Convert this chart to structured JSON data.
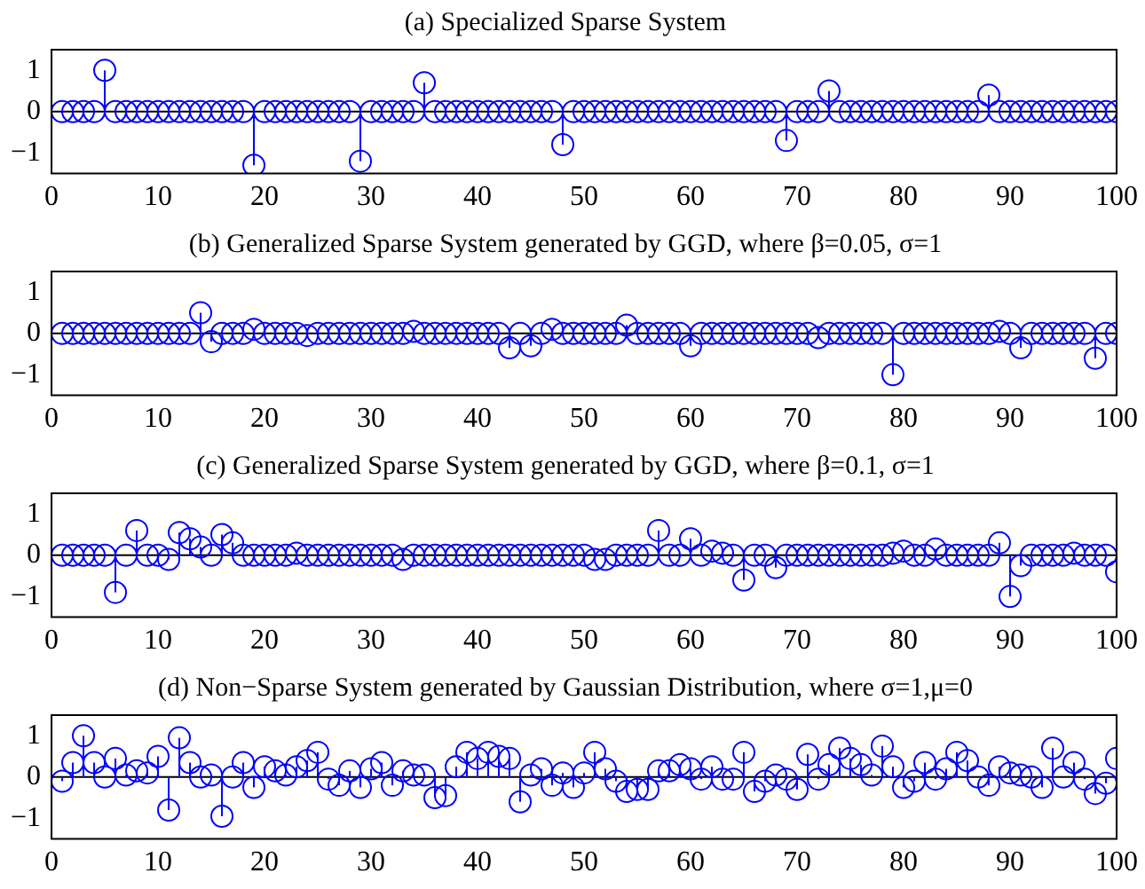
{
  "chart_data": [
    {
      "type": "lollipop",
      "title": "(a) Specialized Sparse System",
      "color": "#0000ff",
      "marker": "circle",
      "xlim": [
        0,
        100
      ],
      "xticks": [
        0,
        10,
        20,
        30,
        40,
        50,
        60,
        70,
        80,
        90,
        100
      ],
      "ylim": [
        -1.5,
        1.5
      ],
      "yticks": [
        -1,
        0,
        1
      ],
      "x": [
        1,
        2,
        3,
        4,
        5,
        6,
        7,
        8,
        9,
        10,
        11,
        12,
        13,
        14,
        15,
        16,
        17,
        18,
        19,
        20,
        21,
        22,
        23,
        24,
        25,
        26,
        27,
        28,
        29,
        30,
        31,
        32,
        33,
        34,
        35,
        36,
        37,
        38,
        39,
        40,
        41,
        42,
        43,
        44,
        45,
        46,
        47,
        48,
        49,
        50,
        51,
        52,
        53,
        54,
        55,
        56,
        57,
        58,
        59,
        60,
        61,
        62,
        63,
        64,
        65,
        66,
        67,
        68,
        69,
        70,
        71,
        72,
        73,
        74,
        75,
        76,
        77,
        78,
        79,
        80,
        81,
        82,
        83,
        84,
        85,
        86,
        87,
        88,
        89,
        90,
        91,
        92,
        93,
        94,
        95,
        96,
        97,
        98,
        99,
        100
      ],
      "values": [
        0,
        0,
        0,
        0,
        1,
        0,
        0,
        0,
        0,
        0,
        0,
        0,
        0,
        0,
        0,
        0,
        0,
        0,
        -1.3,
        0,
        0,
        0,
        0,
        0,
        0,
        0,
        0,
        0,
        -1.2,
        0,
        0,
        0,
        0,
        0,
        0.7,
        0,
        0,
        0,
        0,
        0,
        0,
        0,
        0,
        0,
        0,
        0,
        0,
        -0.8,
        0,
        0,
        0,
        0,
        0,
        0,
        0,
        0,
        0,
        0,
        0,
        0,
        0,
        0,
        0,
        0,
        0,
        0,
        0,
        0,
        -0.7,
        0,
        0,
        0,
        0.5,
        0,
        0,
        0,
        0,
        0,
        0,
        0,
        0,
        0,
        0,
        0,
        0,
        0,
        0,
        0.4,
        0,
        0,
        0,
        0,
        0,
        0,
        0,
        0,
        0,
        0,
        0,
        0
      ]
    },
    {
      "type": "lollipop",
      "title": "(b) Generalized Sparse System generated by GGD, where β=0.05, σ=1",
      "color": "#0000ff",
      "marker": "circle",
      "xlim": [
        0,
        100
      ],
      "xticks": [
        0,
        10,
        20,
        30,
        40,
        50,
        60,
        70,
        80,
        90,
        100
      ],
      "ylim": [
        -1.5,
        1.5
      ],
      "yticks": [
        -1,
        0,
        1
      ],
      "x": [
        1,
        2,
        3,
        4,
        5,
        6,
        7,
        8,
        9,
        10,
        11,
        12,
        13,
        14,
        15,
        16,
        17,
        18,
        19,
        20,
        21,
        22,
        23,
        24,
        25,
        26,
        27,
        28,
        29,
        30,
        31,
        32,
        33,
        34,
        35,
        36,
        37,
        38,
        39,
        40,
        41,
        42,
        43,
        44,
        45,
        46,
        47,
        48,
        49,
        50,
        51,
        52,
        53,
        54,
        55,
        56,
        57,
        58,
        59,
        60,
        61,
        62,
        63,
        64,
        65,
        66,
        67,
        68,
        69,
        70,
        71,
        72,
        73,
        74,
        75,
        76,
        77,
        78,
        79,
        80,
        81,
        82,
        83,
        84,
        85,
        86,
        87,
        88,
        89,
        90,
        91,
        92,
        93,
        94,
        95,
        96,
        97,
        98,
        99,
        100
      ],
      "values": [
        0,
        0,
        0,
        0,
        0,
        0,
        0,
        0,
        0,
        0,
        0,
        0,
        0,
        0.5,
        -0.2,
        0,
        0,
        0,
        0.1,
        0,
        0,
        0,
        0,
        -0.05,
        0,
        0,
        0,
        0,
        0,
        0,
        0,
        0,
        0,
        0.05,
        0,
        0,
        0,
        0,
        0,
        0,
        0,
        0,
        -0.35,
        0,
        -0.3,
        0,
        0.1,
        0,
        0,
        0,
        0,
        0,
        0,
        0.2,
        0,
        0,
        0,
        0,
        0,
        -0.3,
        0,
        0,
        0,
        0,
        0,
        0,
        0,
        0,
        0,
        0,
        0,
        -0.1,
        0,
        0,
        0,
        0,
        0,
        0,
        -1,
        0,
        0,
        0,
        0,
        0,
        0,
        0,
        0,
        0,
        0.05,
        0,
        -0.35,
        0,
        0,
        0,
        0,
        0,
        0,
        -0.6,
        0,
        0
      ]
    },
    {
      "type": "lollipop",
      "title": "(c) Generalized Sparse System generated by GGD, where β=0.1, σ=1",
      "color": "#0000ff",
      "marker": "circle",
      "xlim": [
        0,
        100
      ],
      "xticks": [
        0,
        10,
        20,
        30,
        40,
        50,
        60,
        70,
        80,
        90,
        100
      ],
      "ylim": [
        -1.5,
        1.5
      ],
      "yticks": [
        -1,
        0,
        1
      ],
      "x": [
        1,
        2,
        3,
        4,
        5,
        6,
        7,
        8,
        9,
        10,
        11,
        12,
        13,
        14,
        15,
        16,
        17,
        18,
        19,
        20,
        21,
        22,
        23,
        24,
        25,
        26,
        27,
        28,
        29,
        30,
        31,
        32,
        33,
        34,
        35,
        36,
        37,
        38,
        39,
        40,
        41,
        42,
        43,
        44,
        45,
        46,
        47,
        48,
        49,
        50,
        51,
        52,
        53,
        54,
        55,
        56,
        57,
        58,
        59,
        60,
        61,
        62,
        63,
        64,
        65,
        66,
        67,
        68,
        69,
        70,
        71,
        72,
        73,
        74,
        75,
        76,
        77,
        78,
        79,
        80,
        81,
        82,
        83,
        84,
        85,
        86,
        87,
        88,
        89,
        90,
        91,
        92,
        93,
        94,
        95,
        96,
        97,
        98,
        99,
        100
      ],
      "values": [
        0,
        0,
        0,
        0,
        0,
        -0.9,
        0,
        0.6,
        0,
        0,
        -0.1,
        0.55,
        0.4,
        0.2,
        0,
        0.5,
        0.3,
        0,
        0,
        0,
        0,
        0,
        0.05,
        0,
        0,
        0,
        0,
        0,
        0,
        0,
        0,
        0,
        -0.1,
        0,
        0,
        0,
        0,
        0,
        0,
        0,
        0,
        0,
        0,
        0,
        0,
        0,
        0,
        0,
        0,
        0,
        -0.1,
        -0.1,
        0,
        0,
        0,
        0,
        0.6,
        0,
        0,
        0.4,
        0,
        0.1,
        0.05,
        0,
        -0.6,
        0,
        0,
        -0.3,
        0,
        0,
        0,
        0,
        0,
        0,
        0,
        0,
        0,
        0,
        0.05,
        0.1,
        0,
        0,
        0.15,
        0,
        0,
        0,
        0,
        0,
        0.3,
        -1,
        -0.25,
        0,
        0,
        0,
        0,
        0.05,
        0,
        0,
        0,
        -0.4
      ]
    },
    {
      "type": "lollipop",
      "title": "(d) Non−Sparse System generated by Gaussian Distribution, where σ=1,μ=0",
      "color": "#0000ff",
      "marker": "circle",
      "xlim": [
        0,
        100
      ],
      "xticks": [
        0,
        10,
        20,
        30,
        40,
        50,
        60,
        70,
        80,
        90,
        100
      ],
      "ylim": [
        -1.5,
        1.5
      ],
      "yticks": [
        -1,
        0,
        1
      ],
      "x": [
        1,
        2,
        3,
        4,
        5,
        6,
        7,
        8,
        9,
        10,
        11,
        12,
        13,
        14,
        15,
        16,
        17,
        18,
        19,
        20,
        21,
        22,
        23,
        24,
        25,
        26,
        27,
        28,
        29,
        30,
        31,
        32,
        33,
        34,
        35,
        36,
        37,
        38,
        39,
        40,
        41,
        42,
        43,
        44,
        45,
        46,
        47,
        48,
        49,
        50,
        51,
        52,
        53,
        54,
        55,
        56,
        57,
        58,
        59,
        60,
        61,
        62,
        63,
        64,
        65,
        66,
        67,
        68,
        69,
        70,
        71,
        72,
        73,
        74,
        75,
        76,
        77,
        78,
        79,
        80,
        81,
        82,
        83,
        84,
        85,
        86,
        87,
        88,
        89,
        90,
        91,
        92,
        93,
        94,
        95,
        96,
        97,
        98,
        99,
        100
      ],
      "values": [
        -0.1,
        0.35,
        1,
        0.35,
        0,
        0.45,
        0.05,
        0.15,
        0.1,
        0.5,
        -0.8,
        0.95,
        0.35,
        0,
        0.05,
        -0.95,
        0,
        0.35,
        -0.25,
        0.25,
        0.15,
        0.05,
        0.25,
        0.4,
        0.6,
        -0.05,
        -0.2,
        0.15,
        -0.25,
        0.2,
        0.35,
        -0.2,
        0.15,
        0.05,
        0.05,
        -0.5,
        -0.45,
        0.25,
        0.6,
        0.45,
        0.6,
        0.5,
        0.45,
        -0.6,
        0.05,
        0.2,
        -0.2,
        0.1,
        -0.25,
        0.1,
        0.6,
        0.2,
        -0.1,
        -0.35,
        -0.3,
        -0.3,
        0.15,
        0.15,
        0.3,
        0.2,
        -0.05,
        0.25,
        -0.05,
        -0.05,
        0.6,
        -0.35,
        -0.1,
        0.05,
        -0.05,
        -0.3,
        0.55,
        -0.05,
        0.3,
        0.7,
        0.45,
        0.3,
        0.05,
        0.75,
        0.25,
        -0.25,
        -0.1,
        0.35,
        -0.05,
        0.2,
        0.6,
        0.4,
        0,
        -0.2,
        0.25,
        0.1,
        0.05,
        0,
        -0.25,
        0.7,
        0,
        0.35,
        -0.05,
        -0.4,
        -0.15,
        0.45
      ]
    }
  ]
}
